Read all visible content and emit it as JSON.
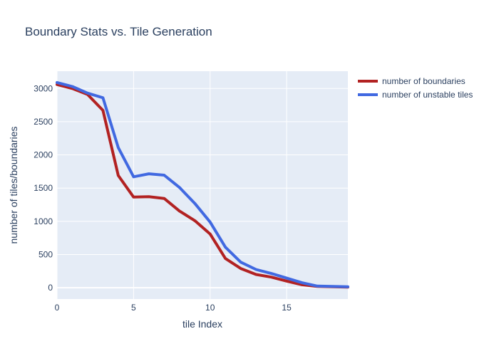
{
  "chart_data": {
    "type": "line",
    "title": "Boundary Stats vs. Tile Generation",
    "xlabel": "tile Index",
    "ylabel": "number of tiles/boundaries",
    "xlim": [
      0,
      19
    ],
    "ylim": [
      -170,
      3260
    ],
    "x_ticks": [
      0,
      5,
      10,
      15
    ],
    "y_ticks": [
      0,
      500,
      1000,
      1500,
      2000,
      2500,
      3000
    ],
    "grid": true,
    "legend_position": "top-right",
    "plot_background": "#e5ecf6",
    "x": [
      0,
      1,
      2,
      3,
      4,
      5,
      6,
      7,
      8,
      9,
      10,
      11,
      12,
      13,
      14,
      15,
      16,
      17,
      18,
      19
    ],
    "series": [
      {
        "name": "number of boundaries",
        "color": "#b22222",
        "values": [
          3060,
          3000,
          2910,
          2670,
          1690,
          1365,
          1370,
          1345,
          1155,
          1010,
          810,
          440,
          290,
          200,
          160,
          100,
          45,
          20,
          15,
          10
        ]
      },
      {
        "name": "number of unstable tiles",
        "color": "#4169e1",
        "values": [
          3090,
          3030,
          2930,
          2860,
          2110,
          1670,
          1715,
          1695,
          1510,
          1270,
          990,
          610,
          385,
          275,
          215,
          145,
          75,
          25,
          20,
          15
        ]
      }
    ]
  }
}
